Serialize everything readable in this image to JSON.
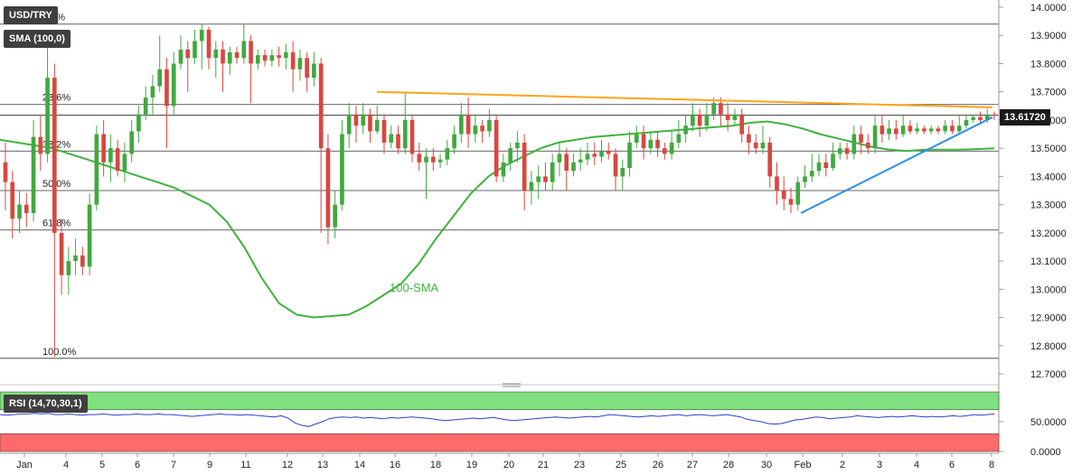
{
  "title": "USD/TRY",
  "sma_legend": "SMA (100,0)",
  "rsi_legend": "RSI (14,70,30,1)",
  "sma_annotation": "100-SMA",
  "current_price": "13.61720",
  "colors": {
    "bull": "#3fa93f",
    "bear": "#d9473f",
    "sma": "#3fb33f",
    "resistance": "#ffa31a",
    "support": "#2f8fe0",
    "rsi_line": "#2d3fd0",
    "rsi_overbought": "#7fe07f",
    "rsi_oversold": "#ff6b6b"
  },
  "chart_data": {
    "type": "candlestick",
    "price_axis": {
      "ylim": [
        12.7,
        14.0
      ],
      "ticks": [
        "14.0000",
        "13.9000",
        "13.8000",
        "13.7000",
        "13.6000",
        "13.5000",
        "13.4000",
        "13.3000",
        "13.2000",
        "13.1000",
        "13.0000",
        "12.9000",
        "12.8000",
        "12.7000"
      ]
    },
    "x_axis": {
      "labels": [
        "Jan",
        "4",
        "5",
        "6",
        "7",
        "9",
        "11",
        "12",
        "13",
        "14",
        "16",
        "18",
        "19",
        "20",
        "21",
        "23",
        "25",
        "26",
        "27",
        "28",
        "30",
        "Feb",
        "2",
        "3",
        "4",
        "6",
        "8"
      ]
    },
    "fib_levels": [
      {
        "label": "0.0%",
        "value": 13.94
      },
      {
        "label": "23.6%",
        "value": 13.655
      },
      {
        "label": "38.2%",
        "value": 13.49
      },
      {
        "label": "50.0%",
        "value": 13.35
      },
      {
        "label": "61.8%",
        "value": 13.21
      },
      {
        "label": "100.0%",
        "value": 12.755
      }
    ],
    "resistance_line": {
      "start": [
        13.7
      ],
      "end": [
        13.645
      ]
    },
    "support_line": {
      "start": [
        13.27
      ],
      "end": [
        13.61
      ]
    },
    "candles": [
      [
        13.45,
        13.38,
        13.52,
        13.28
      ],
      [
        13.38,
        13.25,
        13.42,
        13.18
      ],
      [
        13.25,
        13.3,
        13.35,
        13.2
      ],
      [
        13.3,
        13.27,
        13.34,
        13.22
      ],
      [
        13.27,
        13.54,
        13.6,
        13.24
      ],
      [
        13.54,
        13.48,
        13.62,
        13.42
      ],
      [
        13.48,
        13.75,
        13.88,
        13.45
      ],
      [
        13.75,
        13.2,
        13.8,
        12.76
      ],
      [
        13.2,
        13.05,
        13.25,
        12.98
      ],
      [
        13.05,
        13.1,
        13.15,
        12.98
      ],
      [
        13.1,
        13.12,
        13.18,
        13.05
      ],
      [
        13.12,
        13.08,
        13.15,
        13.05
      ],
      [
        13.08,
        13.3,
        13.34,
        13.05
      ],
      [
        13.3,
        13.55,
        13.58,
        13.28
      ],
      [
        13.55,
        13.45,
        13.6,
        13.4
      ],
      [
        13.45,
        13.5,
        13.55,
        13.38
      ],
      [
        13.5,
        13.42,
        13.53,
        13.4
      ],
      [
        13.42,
        13.48,
        13.52,
        13.38
      ],
      [
        13.48,
        13.56,
        13.6,
        13.45
      ],
      [
        13.56,
        13.62,
        13.65,
        13.52
      ],
      [
        13.62,
        13.68,
        13.72,
        13.6
      ],
      [
        13.68,
        13.72,
        13.76,
        13.62
      ],
      [
        13.72,
        13.78,
        13.9,
        13.7
      ],
      [
        13.78,
        13.65,
        13.82,
        13.5
      ],
      [
        13.65,
        13.8,
        13.84,
        13.62
      ],
      [
        13.8,
        13.85,
        13.9,
        13.78
      ],
      [
        13.85,
        13.82,
        13.88,
        13.7
      ],
      [
        13.82,
        13.88,
        13.92,
        13.8
      ],
      [
        13.88,
        13.92,
        13.94,
        13.78
      ],
      [
        13.92,
        13.82,
        13.93,
        13.78
      ],
      [
        13.82,
        13.85,
        13.88,
        13.75
      ],
      [
        13.85,
        13.8,
        13.88,
        13.7
      ],
      [
        13.8,
        13.84,
        13.86,
        13.76
      ],
      [
        13.84,
        13.82,
        13.86,
        13.8
      ],
      [
        13.82,
        13.88,
        13.94,
        13.8
      ],
      [
        13.88,
        13.8,
        13.9,
        13.66
      ],
      [
        13.8,
        13.83,
        13.85,
        13.78
      ],
      [
        13.83,
        13.81,
        13.85,
        13.79
      ],
      [
        13.81,
        13.83,
        13.85,
        13.79
      ],
      [
        13.83,
        13.82,
        13.86,
        13.79
      ],
      [
        13.82,
        13.84,
        13.87,
        13.78
      ],
      [
        13.84,
        13.78,
        13.88,
        13.7
      ],
      [
        13.78,
        13.82,
        13.85,
        13.74
      ],
      [
        13.82,
        13.75,
        13.84,
        13.7
      ],
      [
        13.75,
        13.8,
        13.84,
        13.72
      ],
      [
        13.8,
        13.5,
        13.82,
        13.2
      ],
      [
        13.5,
        13.22,
        13.55,
        13.16
      ],
      [
        13.22,
        13.3,
        13.35,
        13.18
      ],
      [
        13.3,
        13.55,
        13.6,
        13.28
      ],
      [
        13.55,
        13.62,
        13.66,
        13.5
      ],
      [
        13.62,
        13.58,
        13.65,
        13.52
      ],
      [
        13.58,
        13.62,
        13.66,
        13.55
      ],
      [
        13.62,
        13.56,
        13.64,
        13.52
      ],
      [
        13.56,
        13.6,
        13.65,
        13.55
      ],
      [
        13.6,
        13.52,
        13.62,
        13.48
      ],
      [
        13.52,
        13.55,
        13.58,
        13.5
      ],
      [
        13.55,
        13.5,
        13.58,
        13.48
      ],
      [
        13.5,
        13.6,
        13.7,
        13.48
      ],
      [
        13.6,
        13.48,
        13.62,
        13.45
      ],
      [
        13.48,
        13.45,
        13.52,
        13.42
      ],
      [
        13.45,
        13.47,
        13.5,
        13.32
      ],
      [
        13.47,
        13.45,
        13.5,
        13.42
      ],
      [
        13.45,
        13.46,
        13.48,
        13.43
      ],
      [
        13.46,
        13.5,
        13.53,
        13.44
      ],
      [
        13.5,
        13.55,
        13.58,
        13.48
      ],
      [
        13.55,
        13.62,
        13.66,
        13.52
      ],
      [
        13.62,
        13.55,
        13.68,
        13.5
      ],
      [
        13.55,
        13.58,
        13.62,
        13.52
      ],
      [
        13.58,
        13.56,
        13.6,
        13.52
      ],
      [
        13.56,
        13.6,
        13.64,
        13.54
      ],
      [
        13.6,
        13.4,
        13.62,
        13.38
      ],
      [
        13.4,
        13.45,
        13.48,
        13.38
      ],
      [
        13.45,
        13.5,
        13.52,
        13.42
      ],
      [
        13.5,
        13.52,
        13.56,
        13.45
      ],
      [
        13.52,
        13.35,
        13.55,
        13.28
      ],
      [
        13.35,
        13.38,
        13.42,
        13.3
      ],
      [
        13.38,
        13.4,
        13.44,
        13.32
      ],
      [
        13.4,
        13.38,
        13.45,
        13.35
      ],
      [
        13.38,
        13.45,
        13.48,
        13.35
      ],
      [
        13.45,
        13.48,
        13.52,
        13.4
      ],
      [
        13.48,
        13.42,
        13.5,
        13.35
      ],
      [
        13.42,
        13.45,
        13.48,
        13.4
      ],
      [
        13.45,
        13.46,
        13.5,
        13.42
      ],
      [
        13.46,
        13.48,
        13.52,
        13.44
      ],
      [
        13.48,
        13.47,
        13.52,
        13.44
      ],
      [
        13.47,
        13.49,
        13.53,
        13.45
      ],
      [
        13.49,
        13.48,
        13.52,
        13.46
      ],
      [
        13.48,
        13.4,
        13.5,
        13.35
      ],
      [
        13.4,
        13.43,
        13.46,
        13.35
      ],
      [
        13.43,
        13.52,
        13.56,
        13.4
      ],
      [
        13.52,
        13.55,
        13.58,
        13.5
      ],
      [
        13.55,
        13.5,
        13.58,
        13.46
      ],
      [
        13.5,
        13.53,
        13.56,
        13.48
      ],
      [
        13.53,
        13.5,
        13.56,
        13.47
      ],
      [
        13.5,
        13.48,
        13.52,
        13.46
      ],
      [
        13.48,
        13.52,
        13.56,
        13.46
      ],
      [
        13.52,
        13.55,
        13.6,
        13.5
      ],
      [
        13.55,
        13.58,
        13.62,
        13.52
      ],
      [
        13.58,
        13.62,
        13.66,
        13.56
      ],
      [
        13.62,
        13.58,
        13.64,
        13.54
      ],
      [
        13.58,
        13.62,
        13.66,
        13.56
      ],
      [
        13.62,
        13.66,
        13.68,
        13.6
      ],
      [
        13.66,
        13.62,
        13.68,
        13.58
      ],
      [
        13.62,
        13.6,
        13.66,
        13.56
      ],
      [
        13.6,
        13.62,
        13.64,
        13.58
      ],
      [
        13.62,
        13.55,
        13.64,
        13.52
      ],
      [
        13.55,
        13.52,
        13.58,
        13.48
      ],
      [
        13.52,
        13.5,
        13.55,
        13.48
      ],
      [
        13.5,
        13.52,
        13.58,
        13.48
      ],
      [
        13.52,
        13.4,
        13.54,
        13.36
      ],
      [
        13.4,
        13.35,
        13.45,
        13.3
      ],
      [
        13.35,
        13.32,
        13.4,
        13.28
      ],
      [
        13.32,
        13.3,
        13.36,
        13.27
      ],
      [
        13.3,
        13.38,
        13.4,
        13.28
      ],
      [
        13.38,
        13.4,
        13.44,
        13.36
      ],
      [
        13.4,
        13.42,
        13.48,
        13.38
      ],
      [
        13.42,
        13.45,
        13.48,
        13.4
      ],
      [
        13.45,
        13.43,
        13.48,
        13.4
      ],
      [
        13.43,
        13.48,
        13.52,
        13.42
      ],
      [
        13.48,
        13.5,
        13.52,
        13.46
      ],
      [
        13.5,
        13.48,
        13.52,
        13.46
      ],
      [
        13.48,
        13.55,
        13.58,
        13.46
      ],
      [
        13.55,
        13.52,
        13.58,
        13.48
      ],
      [
        13.52,
        13.5,
        13.55,
        13.48
      ],
      [
        13.5,
        13.58,
        13.62,
        13.48
      ],
      [
        13.58,
        13.55,
        13.62,
        13.52
      ],
      [
        13.55,
        13.57,
        13.6,
        13.53
      ],
      [
        13.57,
        13.55,
        13.6,
        13.53
      ],
      [
        13.55,
        13.58,
        13.62,
        13.54
      ],
      [
        13.58,
        13.56,
        13.6,
        13.55
      ],
      [
        13.56,
        13.57,
        13.59,
        13.55
      ],
      [
        13.57,
        13.56,
        13.58,
        13.55
      ],
      [
        13.56,
        13.57,
        13.58,
        13.55
      ],
      [
        13.57,
        13.56,
        13.58,
        13.55
      ],
      [
        13.56,
        13.58,
        13.6,
        13.55
      ],
      [
        13.58,
        13.56,
        13.6,
        13.55
      ],
      [
        13.56,
        13.58,
        13.62,
        13.55
      ],
      [
        13.58,
        13.6,
        13.62,
        13.57
      ],
      [
        13.6,
        13.61,
        13.62,
        13.59
      ],
      [
        13.61,
        13.6,
        13.63,
        13.59
      ],
      [
        13.6,
        13.62,
        13.64,
        13.59
      ],
      [
        13.62,
        13.617,
        13.63,
        13.6
      ]
    ],
    "sma": [
      13.53,
      13.52,
      13.51,
      13.5,
      13.48,
      13.46,
      13.44,
      13.42,
      13.4,
      13.38,
      13.36,
      13.33,
      13.3,
      13.24,
      13.15,
      13.04,
      12.95,
      12.91,
      12.9,
      12.905,
      12.91,
      12.94,
      12.98,
      13.02,
      13.09,
      13.18,
      13.26,
      13.34,
      13.4,
      13.44,
      13.47,
      13.5,
      13.52,
      13.53,
      13.54,
      13.545,
      13.55,
      13.555,
      13.56,
      13.565,
      13.57,
      13.575,
      13.58,
      13.59,
      13.595,
      13.585,
      13.57,
      13.55,
      13.535,
      13.52,
      13.505,
      13.495,
      13.49,
      13.495,
      13.495,
      13.495,
      13.497,
      13.5
    ],
    "rsi": {
      "ylim": [
        0,
        100
      ],
      "ticks": [
        "50.0000",
        "0.0000"
      ],
      "overbought": 70,
      "oversold": 30,
      "values": [
        62,
        61,
        62,
        63,
        63,
        64,
        63,
        64,
        62,
        62,
        63,
        62,
        61,
        62,
        62,
        63,
        62,
        61,
        62,
        62,
        63,
        62,
        62,
        63,
        62,
        62,
        61,
        60,
        59,
        60,
        61,
        62,
        63,
        62,
        62,
        61,
        62,
        61,
        60,
        59,
        58,
        60,
        56,
        48,
        44,
        42,
        46,
        50,
        55,
        57,
        58,
        57,
        58,
        56,
        57,
        56,
        55,
        57,
        56,
        57,
        58,
        57,
        56,
        55,
        53,
        52,
        53,
        54,
        55,
        56,
        55,
        56,
        57,
        55,
        53,
        52,
        53,
        54,
        55,
        56,
        57,
        58,
        57,
        56,
        57,
        58,
        59,
        58,
        60,
        62,
        61,
        60,
        59,
        58,
        59,
        60,
        59,
        60,
        61,
        62,
        60,
        61,
        62,
        61,
        60,
        61,
        62,
        60,
        58,
        54,
        52,
        50,
        47,
        46,
        47,
        50,
        53,
        54,
        56,
        58,
        57,
        55,
        56,
        57,
        58,
        60,
        59,
        58,
        57,
        58,
        59,
        58,
        59,
        60,
        59,
        58,
        59,
        58,
        59,
        60,
        59,
        60,
        62,
        61,
        62,
        63
      ]
    }
  }
}
